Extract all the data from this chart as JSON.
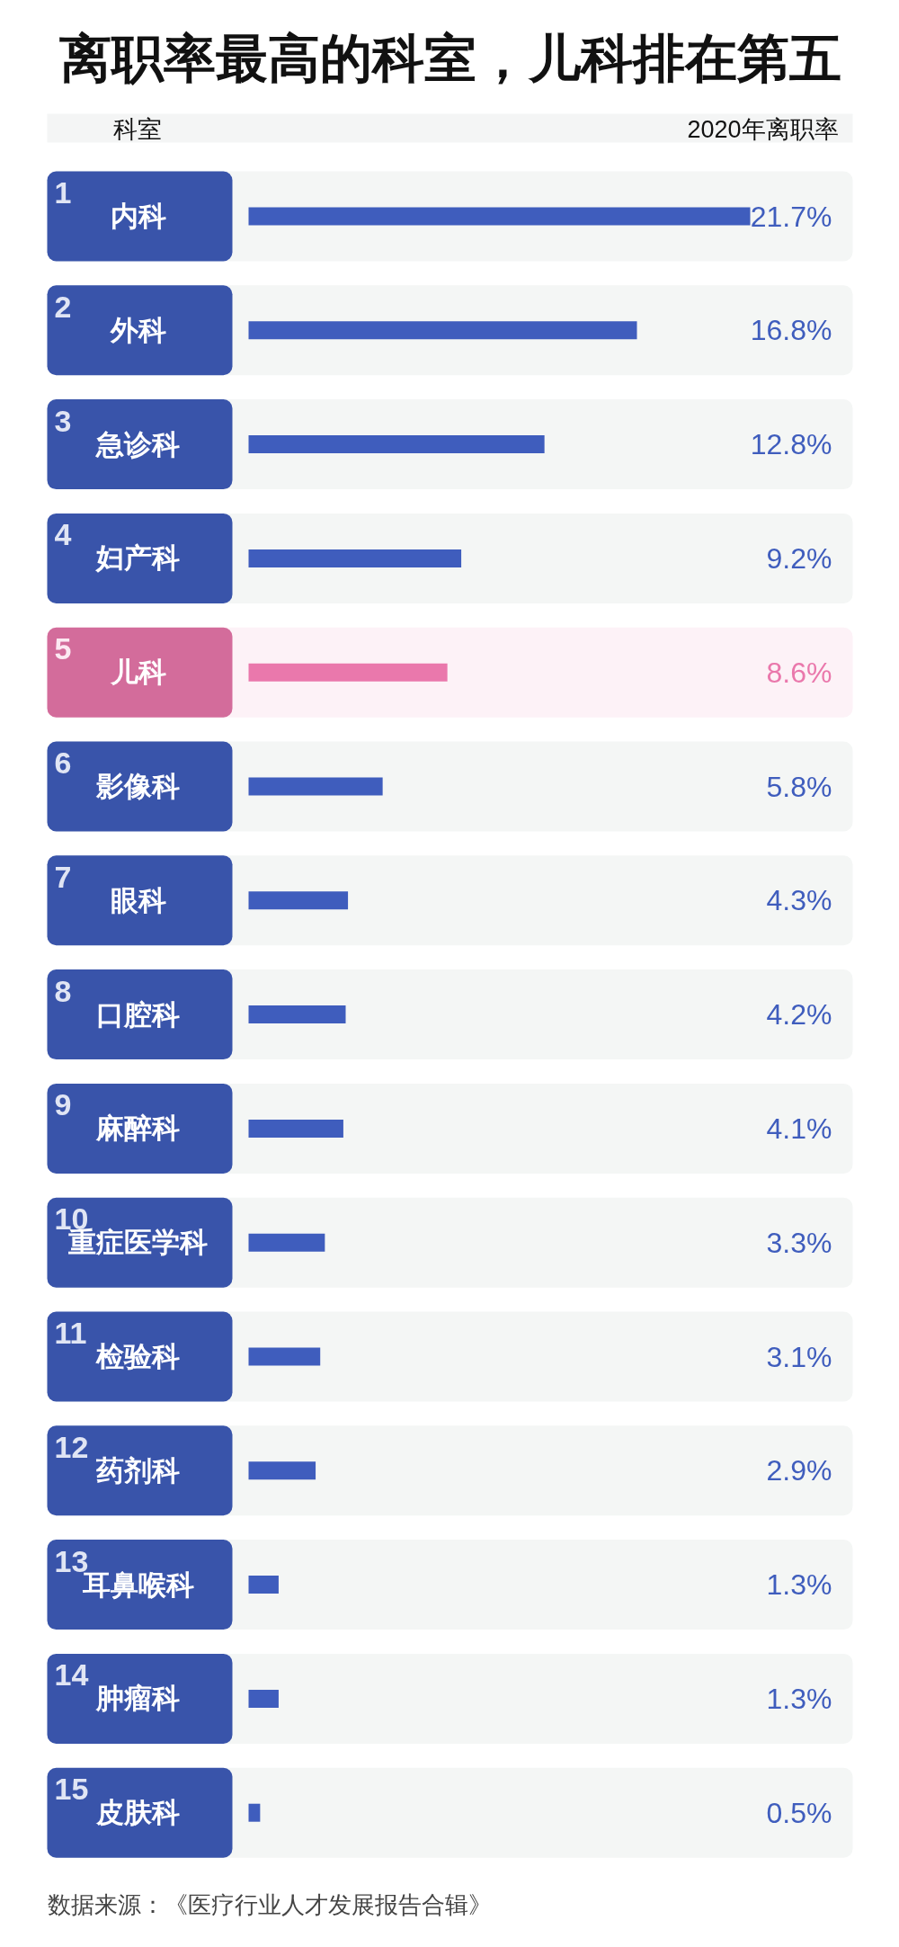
{
  "chart_data": {
    "type": "bar",
    "orientation": "horizontal",
    "title": "离职率最高的科室，儿科排在第五",
    "xlabel": "2020年离职率",
    "ylabel": "科室",
    "categories": [
      "内科",
      "外科",
      "急诊科",
      "妇产科",
      "儿科",
      "影像科",
      "眼科",
      "口腔科",
      "麻醉科",
      "重症医学科",
      "检验科",
      "药剂科",
      "耳鼻喉科",
      "肿瘤科",
      "皮肤科"
    ],
    "values": [
      21.7,
      16.8,
      12.8,
      9.2,
      8.6,
      5.8,
      4.3,
      4.2,
      4.1,
      3.3,
      3.1,
      2.9,
      1.3,
      1.3,
      0.5
    ],
    "colors": [
      "#3f5dbd",
      "#3f5dbd",
      "#3f5dbd",
      "#3f5dbd",
      "#ea78ac",
      "#3f5dbd",
      "#3f5dbd",
      "#3f5dbd",
      "#3f5dbd",
      "#3f5dbd",
      "#3f5dbd",
      "#3f5dbd",
      "#3f5dbd",
      "#3f5dbd",
      "#3f5dbd"
    ],
    "value_labels": [
      "21.7%",
      "16.8%",
      "12.8%",
      "9.2%",
      "8.6%",
      "5.8%",
      "4.3%",
      "4.2%",
      "4.1%",
      "3.3%",
      "3.1%",
      "2.9%",
      "1.3%",
      "1.3%",
      "0.5%"
    ],
    "tick_labels": "y",
    "annotations": [
      "1",
      "2",
      "3",
      "4",
      "5",
      "6",
      "7",
      "8",
      "9",
      "10",
      "11",
      "12",
      "13",
      "14",
      "15",
      "数据来源：《医疗行业人才发展报告合辑》"
    ]
  }
}
